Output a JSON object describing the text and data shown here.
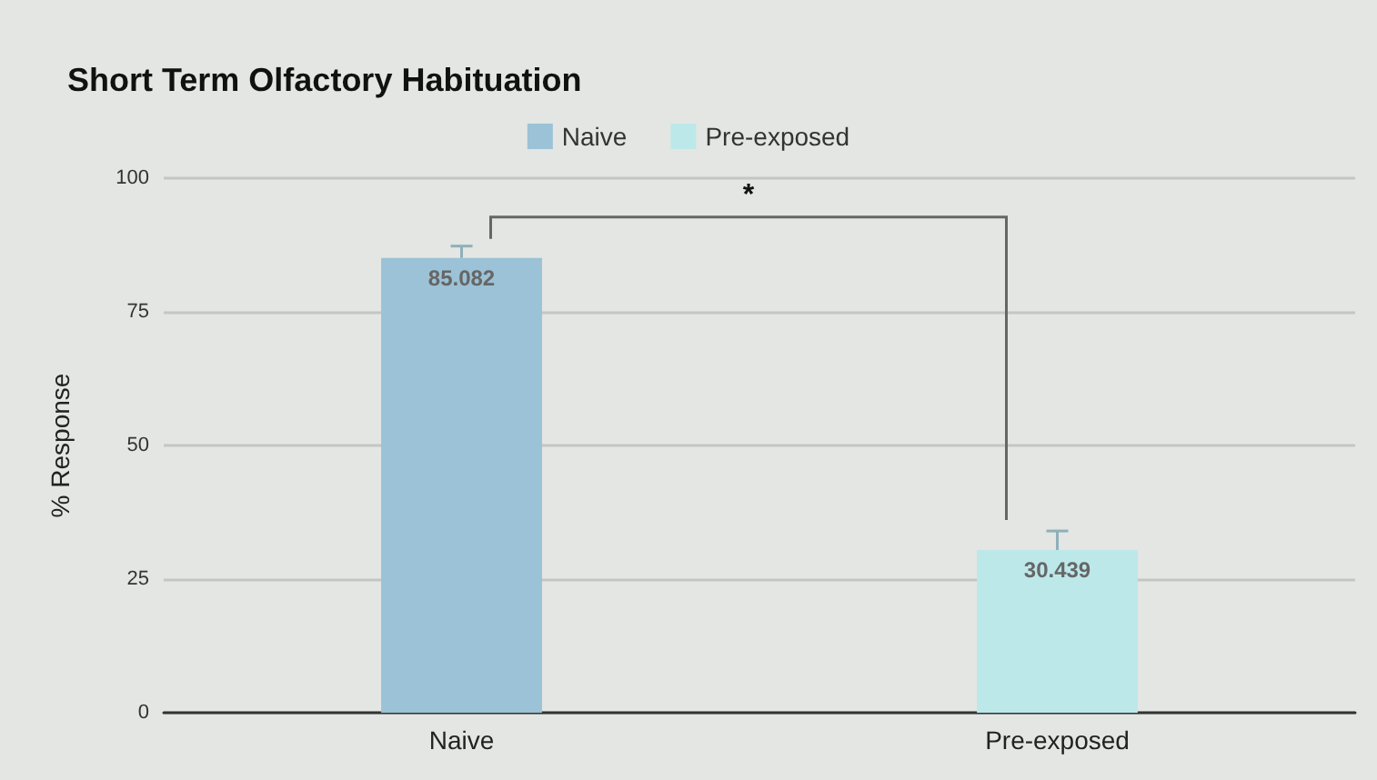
{
  "chart_data": {
    "type": "bar",
    "title": "Short Term Olfactory Habituation",
    "ylabel": "% Response",
    "categories": [
      "Naive",
      "Pre-exposed"
    ],
    "series": [
      {
        "name": "Naive",
        "color": "#9bc2d6",
        "values": [
          85.082,
          null
        ],
        "errors": [
          [
            85.082,
            87.3
          ],
          null
        ]
      },
      {
        "name": "Pre-exposed",
        "color": "#bde8ea",
        "values": [
          null,
          30.439
        ],
        "errors": [
          null,
          [
            30.439,
            34.0
          ]
        ]
      }
    ],
    "ylim": [
      0,
      100
    ],
    "yticks": [
      0,
      25,
      50,
      75,
      100
    ],
    "grid": "y",
    "legend": "top",
    "data_labels": true,
    "annotations": [
      "*"
    ]
  }
}
